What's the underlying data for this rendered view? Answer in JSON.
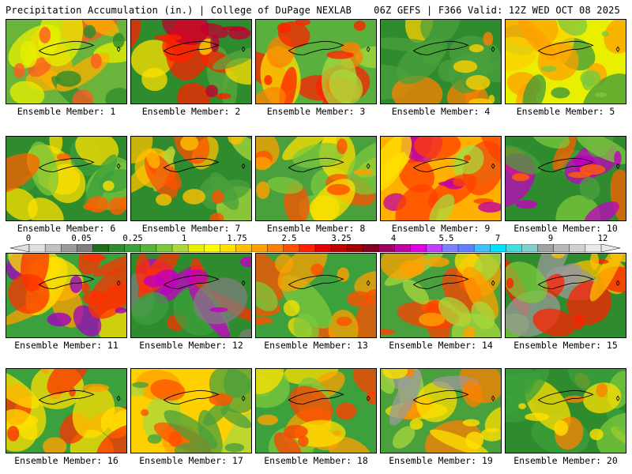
{
  "header": {
    "title_left": "Precipitation Accumulation (in.) | College of DuPage NEXLAB",
    "title_right": "06Z GEFS | F366 Valid: 12Z WED OCT 08 2025"
  },
  "legend": {
    "labels": [
      "0",
      "0.05",
      "0.25",
      "1",
      "1.75",
      "2.5",
      "3.25",
      "4",
      "5.5",
      "7",
      "9",
      "12"
    ],
    "colors": [
      "#e0e0e0",
      "#c0c0c0",
      "#9a9a9a",
      "#7e7e7e",
      "#1e6e1e",
      "#2e8b2e",
      "#3ca03c",
      "#56b43c",
      "#7cc83c",
      "#a8d83c",
      "#e8f000",
      "#ffff00",
      "#ffe000",
      "#ffc000",
      "#ffa000",
      "#ff8000",
      "#ff5000",
      "#ff2000",
      "#e00000",
      "#c00000",
      "#a00000",
      "#800020",
      "#a00060",
      "#c000a0",
      "#e000e0",
      "#c040ff",
      "#8080ff",
      "#6080ff",
      "#40c0ff",
      "#00e0ff",
      "#40e0e0",
      "#80d0d0",
      "#a0a0a0",
      "#b8b8b8",
      "#d0d0d0",
      "#e8e8e8"
    ]
  },
  "panels": [
    {
      "caption": "Ensemble Member: 1",
      "palette": [
        "#6ab43c",
        "#e8f000",
        "#ffb000",
        "#ff5a20",
        "#2e8b2e"
      ]
    },
    {
      "caption": "Ensemble Member: 2",
      "palette": [
        "#2e8b2e",
        "#5aa83c",
        "#ffe000",
        "#ff2000",
        "#c00030"
      ]
    },
    {
      "caption": "Ensemble Member: 3",
      "palette": [
        "#5ab03c",
        "#a8d83c",
        "#ffe000",
        "#ff8000",
        "#ff2000"
      ]
    },
    {
      "caption": "Ensemble Member: 4",
      "palette": [
        "#2e8b2e",
        "#4aa03c",
        "#a8d83c",
        "#ffd000",
        "#ff8000"
      ]
    },
    {
      "caption": "Ensemble Member: 5",
      "palette": [
        "#e8f000",
        "#ffd000",
        "#ffa000",
        "#7cc83c",
        "#3c9a3c"
      ]
    },
    {
      "caption": "Ensemble Member: 6",
      "palette": [
        "#2e8b2e",
        "#3ca03c",
        "#7cc83c",
        "#ffe000",
        "#ff6000"
      ]
    },
    {
      "caption": "Ensemble Member: 7",
      "palette": [
        "#2e8b2e",
        "#4aa03c",
        "#a8d83c",
        "#ffc000",
        "#ff5000"
      ]
    },
    {
      "caption": "Ensemble Member: 8",
      "palette": [
        "#4aa03c",
        "#7cc83c",
        "#ffe000",
        "#ffa000",
        "#ff5000"
      ]
    },
    {
      "caption": "Ensemble Member: 9",
      "palette": [
        "#ffb000",
        "#ffe000",
        "#a8d83c",
        "#ff4000",
        "#c000a0"
      ]
    },
    {
      "caption": "Ensemble Member: 10",
      "palette": [
        "#2e8b2e",
        "#4aa03c",
        "#7cc83c",
        "#ff6000",
        "#c000c0"
      ]
    },
    {
      "caption": "Ensemble Member: 11",
      "palette": [
        "#3ca03c",
        "#ffe000",
        "#ffa000",
        "#ff3000",
        "#a000c0"
      ]
    },
    {
      "caption": "Ensemble Member: 12",
      "palette": [
        "#2e8b2e",
        "#3ca03c",
        "#7e7e7e",
        "#ff3000",
        "#c000c0"
      ]
    },
    {
      "caption": "Ensemble Member: 13",
      "palette": [
        "#3ca03c",
        "#7cc83c",
        "#ffe000",
        "#ffa000",
        "#ff5000"
      ]
    },
    {
      "caption": "Ensemble Member: 14",
      "palette": [
        "#4aa03c",
        "#a8d83c",
        "#ffe000",
        "#ffa000",
        "#ff4000"
      ]
    },
    {
      "caption": "Ensemble Member: 15",
      "palette": [
        "#2e8b2e",
        "#9a9a9a",
        "#7cc83c",
        "#ffc000",
        "#ff2000"
      ]
    },
    {
      "caption": "Ensemble Member: 16",
      "palette": [
        "#3ca03c",
        "#7cc83c",
        "#ffe000",
        "#ffa000",
        "#ff3000"
      ]
    },
    {
      "caption": "Ensemble Member: 17",
      "palette": [
        "#ffd000",
        "#ffa000",
        "#a8d83c",
        "#4aa03c",
        "#ff5000"
      ]
    },
    {
      "caption": "Ensemble Member: 18",
      "palette": [
        "#3ca03c",
        "#7cc83c",
        "#ffe000",
        "#ffa000",
        "#ff4000"
      ]
    },
    {
      "caption": "Ensemble Member: 19",
      "palette": [
        "#4aa03c",
        "#9a9a9a",
        "#a8d83c",
        "#ffe000",
        "#ff8000"
      ]
    },
    {
      "caption": "Ensemble Member: 20",
      "palette": [
        "#2e8b2e",
        "#3ca03c",
        "#7cc83c",
        "#ffe000",
        "#ff8000"
      ]
    }
  ]
}
